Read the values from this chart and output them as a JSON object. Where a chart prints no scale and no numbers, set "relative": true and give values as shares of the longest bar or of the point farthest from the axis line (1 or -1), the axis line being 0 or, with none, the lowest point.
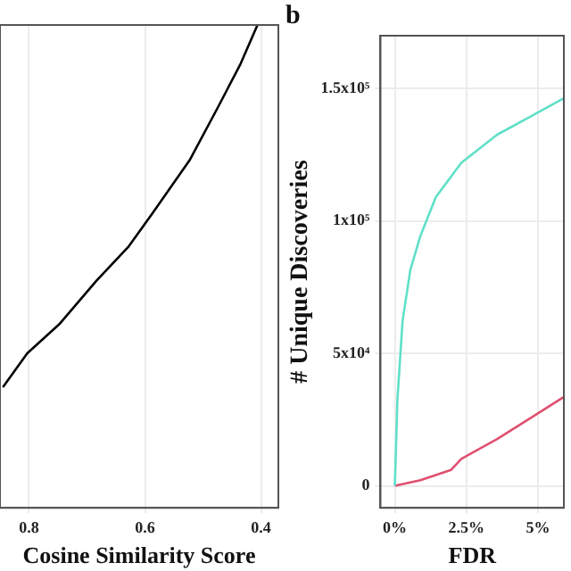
{
  "chart_data": [
    {
      "type": "line",
      "xlabel": "Cosine Similarity Score",
      "relative": true,
      "xlim": [
        0.85,
        0.37
      ],
      "xticks": [
        0.8,
        0.6,
        0.4
      ],
      "grid": "x",
      "tick_labels": "x",
      "marker": "none",
      "series": [
        {
          "color": "#000000",
          "x": [
            0.845,
            0.803,
            0.748,
            0.684,
            0.629,
            0.587,
            0.523,
            0.474,
            0.435,
            0.406
          ],
          "values": [
            0.25,
            0.32,
            0.38,
            0.47,
            0.54,
            0.61,
            0.72,
            0.83,
            0.92,
            1
          ]
        }
      ]
    },
    {
      "type": "line",
      "title": "b",
      "xlabel": "FDR",
      "ylabel": "# Unique Discoveries",
      "xlim": [
        -0.5,
        5.9
      ],
      "xticks": [
        {
          "value": 0,
          "label": "0%"
        },
        {
          "value": 2.5,
          "label": "2.5%"
        },
        {
          "value": 5,
          "label": "5%"
        }
      ],
      "ylim": [
        -8300,
        170000
      ],
      "yticks": [
        {
          "value": 0,
          "label": "0"
        },
        {
          "value": 50000,
          "label": "5x10⁴"
        },
        {
          "value": 100000,
          "label": "1x10⁵"
        },
        {
          "value": 150000,
          "label": "1.5x10⁵"
        }
      ],
      "grid": true,
      "marker": "none",
      "series": [
        {
          "color": "#5fe0c8",
          "x": [
            0,
            0.09,
            0.27,
            0.54,
            0.89,
            1.43,
            2.32,
            3.57,
            4.82,
            5.9
          ],
          "values": [
            0,
            32600,
            62300,
            81500,
            94300,
            109000,
            122000,
            132600,
            140000,
            146400
          ]
        },
        {
          "color": "#e05070",
          "x": [
            0,
            0.89,
            1.96,
            2.32,
            3.57,
            4.82,
            5.9
          ],
          "values": [
            0,
            2100,
            6000,
            10200,
            17700,
            26200,
            33600
          ]
        }
      ]
    }
  ]
}
